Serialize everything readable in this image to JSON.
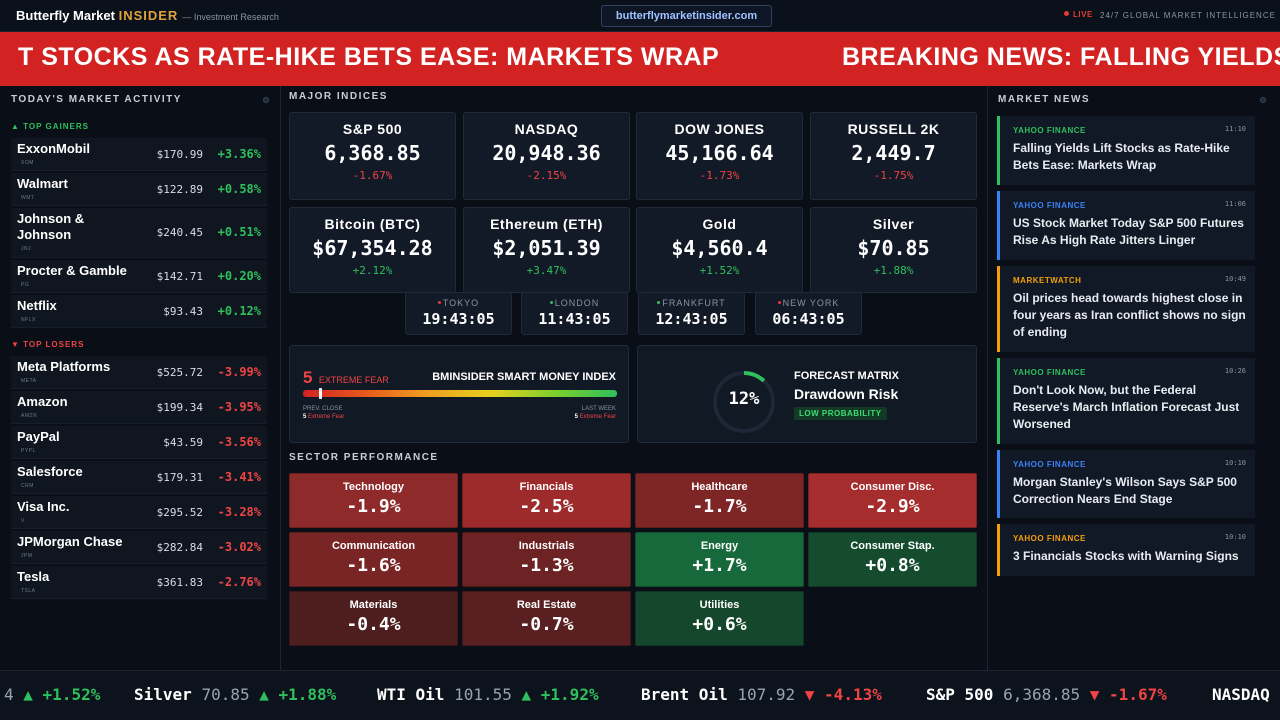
{
  "topbar": {
    "brand_name": "Butterfly Market ",
    "brand_insider": "INSIDER",
    "brand_sub": "— Investment Research",
    "url": "butterflymarketinsider.com",
    "live": "LIVE",
    "tagline": "24/7 GLOBAL MARKET INTELLIGENCE"
  },
  "banner": {
    "text1": "T STOCKS AS RATE-HIKE BETS EASE: MARKETS WRAP",
    "text2": "BREAKING NEWS: FALLING YIELDS"
  },
  "activity": {
    "title": "TODAY'S MARKET ACTIVITY",
    "gainers_label": "▲ TOP GAINERS",
    "losers_label": "▼ TOP LOSERS",
    "gainers": [
      {
        "name": "ExxonMobil",
        "ticker": "XOM",
        "price": "$170.99",
        "change": "+3.36%"
      },
      {
        "name": "Walmart",
        "ticker": "WMT",
        "price": "$122.89",
        "change": "+0.58%"
      },
      {
        "name": "Johnson & Johnson",
        "ticker": "JNJ",
        "price": "$240.45",
        "change": "+0.51%"
      },
      {
        "name": "Procter & Gamble",
        "ticker": "PG",
        "price": "$142.71",
        "change": "+0.20%"
      },
      {
        "name": "Netflix",
        "ticker": "NFLX",
        "price": "$93.43",
        "change": "+0.12%"
      }
    ],
    "losers": [
      {
        "name": "Meta Platforms",
        "ticker": "META",
        "price": "$525.72",
        "change": "-3.99%"
      },
      {
        "name": "Amazon",
        "ticker": "AMZN",
        "price": "$199.34",
        "change": "-3.95%"
      },
      {
        "name": "PayPal",
        "ticker": "PYPL",
        "price": "$43.59",
        "change": "-3.56%"
      },
      {
        "name": "Salesforce",
        "ticker": "CRM",
        "price": "$179.31",
        "change": "-3.41%"
      },
      {
        "name": "Visa Inc.",
        "ticker": "V",
        "price": "$295.52",
        "change": "-3.28%"
      },
      {
        "name": "JPMorgan Chase",
        "ticker": "JPM",
        "price": "$282.84",
        "change": "-3.02%"
      },
      {
        "name": "Tesla",
        "ticker": "TSLA",
        "price": "$361.83",
        "change": "-2.76%"
      }
    ]
  },
  "indices": {
    "title": "MAJOR INDICES",
    "items": [
      {
        "name": "S&P 500",
        "value": "6,368.85",
        "change": "-1.67%"
      },
      {
        "name": "NASDAQ",
        "value": "20,948.36",
        "change": "-2.15%"
      },
      {
        "name": "DOW JONES",
        "value": "45,166.64",
        "change": "-1.73%"
      },
      {
        "name": "RUSSELL 2K",
        "value": "2,449.7",
        "change": "-1.75%"
      },
      {
        "name": "Bitcoin (BTC)",
        "value": "$67,354.28",
        "change": "+2.12%"
      },
      {
        "name": "Ethereum (ETH)",
        "value": "$2,051.39",
        "change": "+3.47%"
      },
      {
        "name": "Gold",
        "value": "$4,560.4",
        "change": "+1.52%"
      },
      {
        "name": "Silver",
        "value": "$70.85",
        "change": "+1.88%"
      }
    ]
  },
  "clocks": [
    {
      "city": "TOKYO",
      "time": "19:43:05",
      "color": "#e53935"
    },
    {
      "city": "LONDON",
      "time": "11:43:05",
      "color": "#2fbf5c"
    },
    {
      "city": "FRANKFURT",
      "time": "12:43:05",
      "color": "#2fbf5c"
    },
    {
      "city": "NEW YORK",
      "time": "06:43:05",
      "color": "#e53935"
    }
  ],
  "smart_money": {
    "value": "5",
    "label": "EXTREME FEAR",
    "title": "BMINSIDER SMART MONEY INDEX",
    "level": 0.05,
    "prev_label": "PREV. CLOSE",
    "prev_value": "5",
    "prev_text": "Extreme Fear",
    "last_label": "LAST WEEK",
    "last_value": "5",
    "last_text": "Extreme Fear"
  },
  "forecast": {
    "percent": "12%",
    "level": 0.12,
    "title": "FORECAST MATRIX",
    "subtitle": "Drawdown Risk",
    "badge": "LOW PROBABILITY"
  },
  "sectors": {
    "title": "SECTOR PERFORMANCE",
    "items": [
      {
        "name": "Technology",
        "value": "-1.9%",
        "color": "#8e2a2a"
      },
      {
        "name": "Financials",
        "value": "-2.5%",
        "color": "#9d2b2b"
      },
      {
        "name": "Healthcare",
        "value": "-1.7%",
        "color": "#7e2626"
      },
      {
        "name": "Consumer Disc.",
        "value": "-2.9%",
        "color": "#a62d2d"
      },
      {
        "name": "Communication",
        "value": "-1.6%",
        "color": "#7a2525"
      },
      {
        "name": "Industrials",
        "value": "-1.3%",
        "color": "#6d2323"
      },
      {
        "name": "Energy",
        "value": "+1.7%",
        "color": "#17683a"
      },
      {
        "name": "Consumer Stap.",
        "value": "+0.8%",
        "color": "#154c2e"
      },
      {
        "name": "Materials",
        "value": "-0.4%",
        "color": "#4e1e1f"
      },
      {
        "name": "Real Estate",
        "value": "-0.7%",
        "color": "#5a2021"
      },
      {
        "name": "Utilities",
        "value": "+0.6%",
        "color": "#14472b"
      }
    ]
  },
  "news": {
    "title": "MARKET NEWS",
    "items": [
      {
        "source": "YAHOO FINANCE",
        "time": "11:10",
        "headline": "Falling Yields Lift Stocks as Rate-Hike Bets Ease: Markets Wrap",
        "color": "#2fbf5c"
      },
      {
        "source": "YAHOO FINANCE",
        "time": "11:06",
        "headline": "US Stock Market Today S&P 500 Futures Rise As High Rate Jitters Linger",
        "color": "#3b82f6"
      },
      {
        "source": "MARKETWATCH",
        "time": "10:49",
        "headline": "Oil prices head towards highest close in four years as Iran conflict shows no sign of ending",
        "color": "#f59e0b"
      },
      {
        "source": "YAHOO FINANCE",
        "time": "10:26",
        "headline": "Don't Look Now, but the Federal Reserve's March Inflation Forecast Just Worsened",
        "color": "#2fbf5c"
      },
      {
        "source": "YAHOO FINANCE",
        "time": "10:10",
        "headline": "Morgan Stanley's Wilson Says S&P 500 Correction Nears End Stage",
        "color": "#3b82f6"
      },
      {
        "source": "YAHOO FINANCE",
        "time": "10:10",
        "headline": "3 Financials Stocks with Warning Signs",
        "color": "#f59e0b"
      }
    ]
  },
  "ticker": {
    "items": [
      {
        "name": "",
        "price": "4",
        "change": "▲ +1.52%"
      },
      {
        "name": "Silver",
        "price": "70.85",
        "change": "▲ +1.88%"
      },
      {
        "name": "WTI Oil",
        "price": "101.55",
        "change": "▲ +1.92%"
      },
      {
        "name": "Brent Oil",
        "price": "107.92",
        "change": "▼ -4.13%"
      },
      {
        "name": "S&P 500",
        "price": "6,368.85",
        "change": "▼ -1.67%"
      },
      {
        "name": "NASDAQ",
        "price": "",
        "change": ""
      }
    ]
  },
  "colors": {
    "up": "#2fbf5c",
    "down": "#ef4444",
    "accent": "#e0a23a",
    "banner": "#d32222"
  }
}
